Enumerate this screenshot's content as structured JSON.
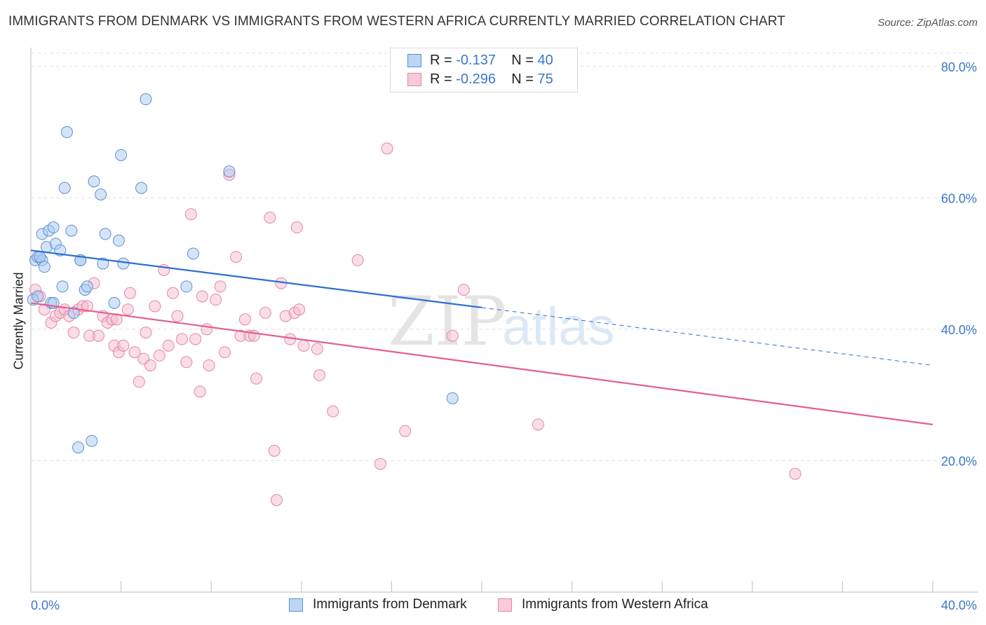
{
  "title": "IMMIGRANTS FROM DENMARK VS IMMIGRANTS FROM WESTERN AFRICA CURRENTLY MARRIED CORRELATION CHART",
  "source": "Source: ZipAtlas.com",
  "watermark": {
    "zip": "ZIP",
    "atlas": "atlas"
  },
  "legend_stats": [
    {
      "r_label": "R =",
      "r_value": "-0.137",
      "n_label": "N =",
      "n_value": "40"
    },
    {
      "r_label": "R =",
      "r_value": "-0.296",
      "n_label": "N =",
      "n_value": "75"
    }
  ],
  "colors": {
    "denmark_fill": "#a9c9f0",
    "denmark_stroke": "#5b8fd6",
    "denmark_line": "#2b6fd1",
    "wafrica_fill": "#f6bcd0",
    "wafrica_stroke": "#e486a6",
    "wafrica_line": "#e2608e",
    "tick_label": "#3a78c9",
    "grid": "#e0e0e0"
  },
  "chart_data": {
    "type": "scatter",
    "title": "IMMIGRANTS FROM DENMARK VS IMMIGRANTS FROM WESTERN AFRICA CURRENTLY MARRIED CORRELATION CHART",
    "xlabel": "",
    "ylabel": "Currently Married",
    "xlim": [
      0,
      40
    ],
    "ylim": [
      0,
      82
    ],
    "x_tick_labels": [
      "0.0%",
      "40.0%"
    ],
    "y_ticks": [
      20,
      40,
      60,
      80
    ],
    "y_tick_labels": [
      "20.0%",
      "40.0%",
      "60.0%",
      "80.0%"
    ],
    "grid": true,
    "legend_position": "bottom",
    "series": [
      {
        "name": "Immigrants from Denmark",
        "r": -0.137,
        "n": 40,
        "trend": {
          "x": [
            0,
            20
          ],
          "y": [
            52.0,
            43.3
          ],
          "dashed_to": [
            40,
            34.5
          ]
        },
        "points": [
          [
            0.1,
            44.5
          ],
          [
            0.2,
            50.5
          ],
          [
            0.3,
            51.0
          ],
          [
            0.5,
            50.5
          ],
          [
            0.6,
            49.5
          ],
          [
            0.5,
            54.5
          ],
          [
            0.7,
            52.5
          ],
          [
            0.8,
            55.0
          ],
          [
            0.9,
            44.0
          ],
          [
            1.0,
            55.5
          ],
          [
            1.1,
            53.0
          ],
          [
            1.3,
            52.0
          ],
          [
            1.4,
            46.5
          ],
          [
            1.5,
            61.5
          ],
          [
            1.6,
            70.0
          ],
          [
            1.8,
            55.0
          ],
          [
            1.9,
            42.5
          ],
          [
            2.1,
            22.0
          ],
          [
            2.2,
            50.5
          ],
          [
            2.4,
            46.0
          ],
          [
            2.5,
            46.5
          ],
          [
            2.7,
            23.0
          ],
          [
            2.8,
            62.5
          ],
          [
            3.1,
            60.5
          ],
          [
            3.2,
            50.0
          ],
          [
            3.3,
            54.5
          ],
          [
            3.7,
            44.0
          ],
          [
            3.9,
            53.5
          ],
          [
            4.0,
            66.5
          ],
          [
            4.1,
            50.0
          ],
          [
            4.9,
            61.5
          ],
          [
            5.1,
            75.0
          ],
          [
            6.9,
            46.5
          ],
          [
            7.2,
            51.5
          ],
          [
            8.8,
            64.0
          ],
          [
            18.7,
            29.5
          ],
          [
            0.4,
            51.0
          ],
          [
            1.0,
            44.0
          ],
          [
            2.2,
            50.5
          ],
          [
            0.3,
            45.0
          ]
        ]
      },
      {
        "name": "Immigrants from Western Africa",
        "r": -0.296,
        "n": 75,
        "trend": {
          "x": [
            0,
            40
          ],
          "y": [
            44.0,
            25.5
          ]
        },
        "points": [
          [
            0.2,
            46.0
          ],
          [
            0.4,
            45.0
          ],
          [
            0.6,
            43.0
          ],
          [
            0.9,
            41.0
          ],
          [
            1.1,
            42.0
          ],
          [
            1.3,
            42.5
          ],
          [
            1.5,
            43.0
          ],
          [
            1.7,
            42.0
          ],
          [
            1.9,
            39.5
          ],
          [
            2.1,
            43.0
          ],
          [
            2.3,
            43.5
          ],
          [
            2.5,
            43.5
          ],
          [
            2.6,
            39.0
          ],
          [
            2.8,
            47.0
          ],
          [
            3.0,
            39.0
          ],
          [
            3.2,
            42.0
          ],
          [
            3.4,
            41.0
          ],
          [
            3.6,
            41.5
          ],
          [
            3.7,
            37.5
          ],
          [
            3.9,
            36.5
          ],
          [
            4.1,
            37.5
          ],
          [
            4.3,
            43.0
          ],
          [
            4.4,
            45.5
          ],
          [
            4.6,
            36.5
          ],
          [
            4.8,
            32.0
          ],
          [
            5.0,
            35.5
          ],
          [
            5.1,
            39.5
          ],
          [
            5.3,
            34.5
          ],
          [
            5.5,
            43.5
          ],
          [
            5.7,
            36.0
          ],
          [
            5.9,
            49.0
          ],
          [
            6.1,
            37.5
          ],
          [
            6.3,
            45.5
          ],
          [
            6.5,
            42.0
          ],
          [
            6.7,
            38.5
          ],
          [
            6.9,
            35.0
          ],
          [
            7.1,
            57.5
          ],
          [
            7.3,
            38.5
          ],
          [
            7.5,
            30.5
          ],
          [
            7.6,
            45.0
          ],
          [
            7.8,
            40.0
          ],
          [
            7.9,
            34.5
          ],
          [
            8.2,
            44.5
          ],
          [
            8.4,
            46.5
          ],
          [
            8.6,
            36.5
          ],
          [
            8.8,
            63.5
          ],
          [
            9.1,
            51.0
          ],
          [
            9.3,
            39.0
          ],
          [
            9.5,
            41.5
          ],
          [
            9.7,
            39.0
          ],
          [
            9.9,
            39.0
          ],
          [
            10.0,
            32.5
          ],
          [
            10.4,
            42.5
          ],
          [
            10.6,
            57.0
          ],
          [
            10.8,
            21.5
          ],
          [
            10.9,
            14.0
          ],
          [
            11.1,
            47.0
          ],
          [
            11.3,
            42.0
          ],
          [
            11.5,
            38.5
          ],
          [
            11.7,
            42.5
          ],
          [
            11.8,
            55.5
          ],
          [
            11.9,
            43.0
          ],
          [
            12.1,
            37.5
          ],
          [
            12.7,
            37.0
          ],
          [
            12.8,
            33.0
          ],
          [
            13.4,
            27.5
          ],
          [
            14.5,
            50.5
          ],
          [
            15.5,
            19.5
          ],
          [
            15.8,
            67.5
          ],
          [
            16.6,
            24.5
          ],
          [
            18.7,
            39.0
          ],
          [
            19.2,
            46.0
          ],
          [
            22.5,
            25.5
          ],
          [
            33.9,
            18.0
          ],
          [
            3.8,
            41.5
          ]
        ]
      }
    ]
  }
}
